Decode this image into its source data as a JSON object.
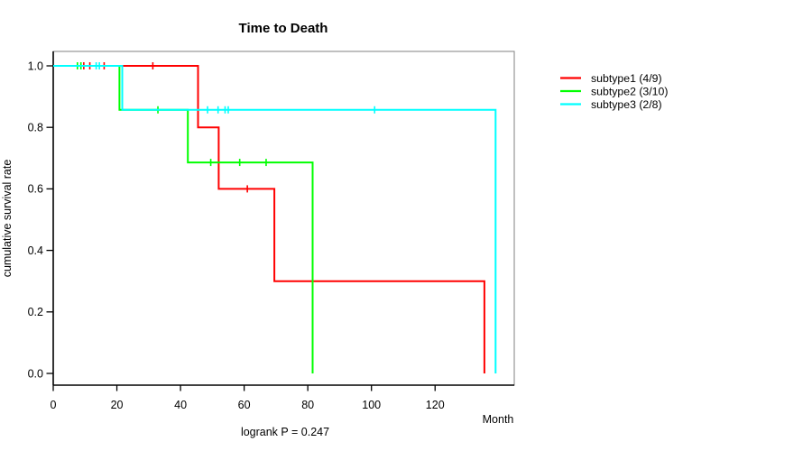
{
  "title": "Time to Death",
  "chart_data": {
    "type": "line",
    "subtype": "kaplan-meier-step-curves",
    "title": "Time to Death",
    "xlabel": "Month",
    "ylabel": "cumulative survival rate",
    "annotation": "logrank P = 0.247",
    "xlim": [
      0,
      145
    ],
    "ylim": [
      0.0,
      1.0
    ],
    "xticks": [
      "0",
      "20",
      "40",
      "60",
      "80",
      "100",
      "120"
    ],
    "yticks": [
      "0.0",
      "0.2",
      "0.4",
      "0.6",
      "0.8",
      "1.0"
    ],
    "grid": false,
    "legend_position": "right-outside",
    "series": [
      {
        "name": "subtype1 (4/9)",
        "color": "#ff0000",
        "steps": [
          [
            0,
            1.0
          ],
          [
            45.5,
            1.0
          ],
          [
            45.5,
            0.8
          ],
          [
            52,
            0.8
          ],
          [
            52,
            0.6
          ],
          [
            69.5,
            0.6
          ],
          [
            69.5,
            0.3
          ],
          [
            135.5,
            0.3
          ],
          [
            135.5,
            0.0
          ]
        ],
        "censor_ticks": [
          [
            9.6,
            1.0
          ],
          [
            11.5,
            1.0
          ],
          [
            16,
            1.0
          ],
          [
            31.3,
            1.0
          ],
          [
            61,
            0.6
          ]
        ]
      },
      {
        "name": "subtype2 (3/10)",
        "color": "#00ff00",
        "steps": [
          [
            0,
            1.0
          ],
          [
            20.8,
            1.0
          ],
          [
            20.8,
            0.857
          ],
          [
            42.3,
            0.857
          ],
          [
            42.3,
            0.686
          ],
          [
            81.5,
            0.686
          ],
          [
            81.5,
            0.0
          ]
        ],
        "censor_ticks": [
          [
            7.6,
            1.0
          ],
          [
            8.7,
            1.0
          ],
          [
            32.9,
            0.857
          ],
          [
            49.5,
            0.686
          ],
          [
            58.6,
            0.686
          ],
          [
            66.9,
            0.686
          ]
        ]
      },
      {
        "name": "subtype3 (2/8)",
        "color": "#00ffff",
        "steps": [
          [
            0,
            1.0
          ],
          [
            21.7,
            1.0
          ],
          [
            21.7,
            0.857
          ],
          [
            139,
            0.857
          ],
          [
            139,
            0.0
          ]
        ],
        "censor_ticks": [
          [
            13.5,
            1.0
          ],
          [
            14.5,
            1.0
          ],
          [
            48.5,
            0.857
          ],
          [
            51.8,
            0.857
          ],
          [
            54,
            0.857
          ],
          [
            55,
            0.857
          ],
          [
            101,
            0.857
          ]
        ]
      }
    ]
  },
  "legend": {
    "items": [
      {
        "label": "subtype1 (4/9)",
        "color": "#ff0000"
      },
      {
        "label": "subtype2 (3/10)",
        "color": "#00ff00"
      },
      {
        "label": "subtype3 (2/8)",
        "color": "#00ffff"
      }
    ]
  },
  "colors": {
    "box_light": "#808080",
    "axis_dark": "#000000",
    "background": "#ffffff"
  }
}
